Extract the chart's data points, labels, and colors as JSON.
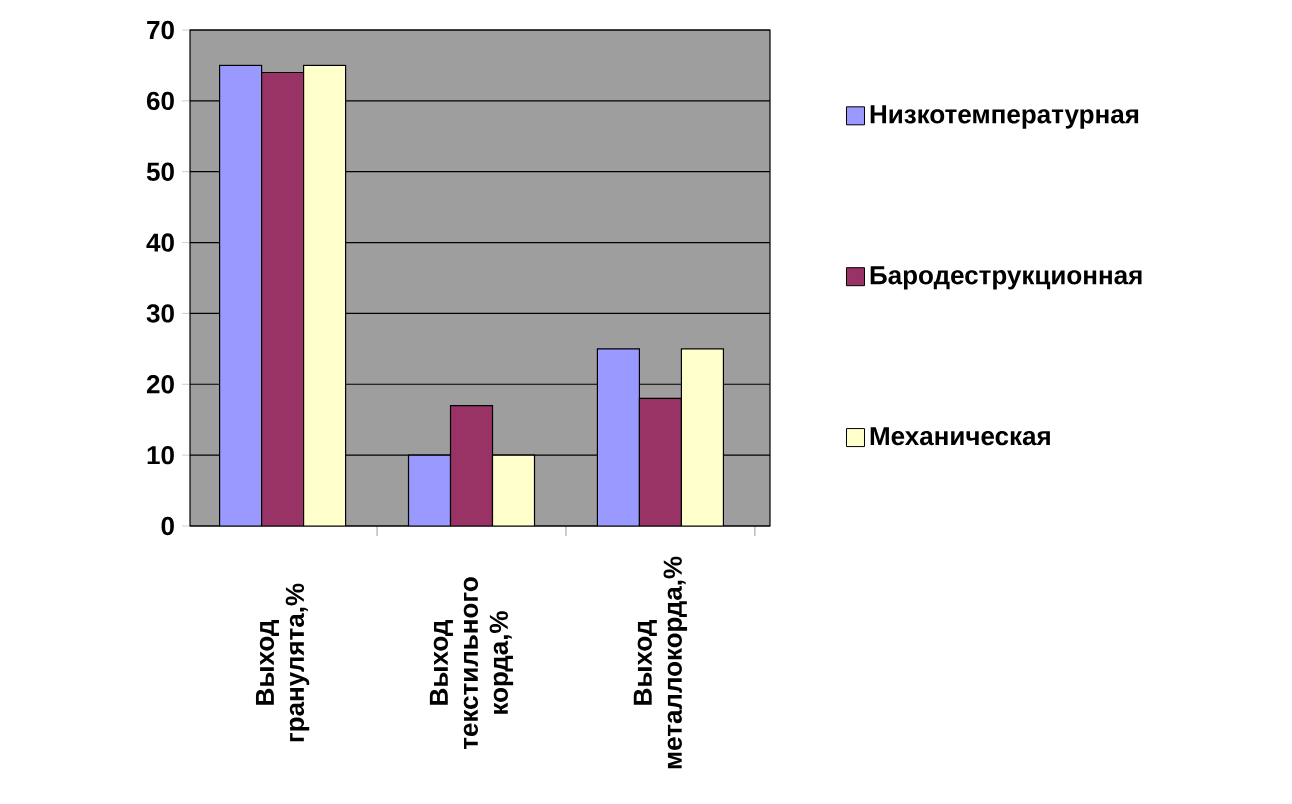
{
  "chart_data": {
    "type": "bar",
    "categories": [
      "Выход гранулята,%",
      "Выход текстильного корда,%",
      "Выход металлокорда,%"
    ],
    "series": [
      {
        "name": "Низкотемпературная",
        "color": "#9999ff",
        "values": [
          65,
          10,
          25
        ]
      },
      {
        "name": "Бародеструкционная",
        "color": "#993366",
        "values": [
          64,
          17,
          18
        ]
      },
      {
        "name": "Механическая",
        "color": "#ffffcc",
        "values": [
          65,
          10,
          25
        ]
      }
    ],
    "ylim": [
      0,
      70
    ],
    "yticks": [
      0,
      10,
      20,
      30,
      40,
      50,
      60,
      70
    ],
    "grid": "y",
    "legend": "right"
  }
}
